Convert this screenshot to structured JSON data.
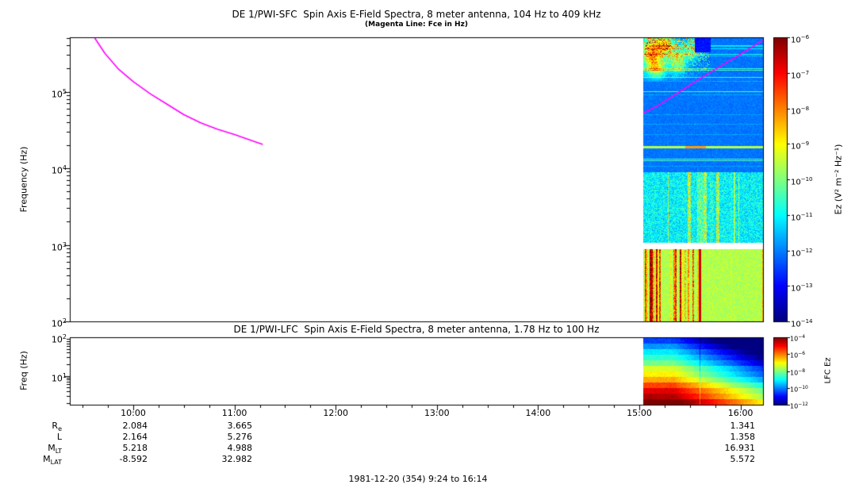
{
  "figure": {
    "footer": "1981-12-20 (354) 9:24 to 16:14",
    "background": "#ffffff"
  },
  "chart_data": [
    {
      "type": "heatmap",
      "title": "DE 1/PWI-SFC  Spin Axis E-Field Spectra, 8 meter antenna, 104 Hz to 409 kHz",
      "subtitle": "(Magenta Line: Fce in Hz)",
      "ylabel": "Frequency (Hz)",
      "y_log10_range": [
        2,
        5.71
      ],
      "ytick_exponents": [
        5,
        4,
        3,
        2
      ],
      "xtick_labels": [
        "10:00",
        "11:00",
        "12:00",
        "13:00",
        "14:00",
        "15:00",
        "16:00"
      ],
      "xtick_hours": [
        10,
        11,
        12,
        13,
        14,
        15,
        16
      ],
      "x_hours_range": [
        9.37,
        16.22
      ],
      "colorbar": {
        "label": "Ez (V² m⁻² Hz⁻¹)",
        "tick_exponents": [
          -6,
          -7,
          -8,
          -9,
          -10,
          -11,
          -12,
          -13,
          -14
        ]
      },
      "fce_line": {
        "color": "#ff00ff",
        "segments_hours_logfreq": [
          [
            [
              9.62,
              5.7
            ],
            [
              9.72,
              5.5
            ],
            [
              9.85,
              5.3
            ],
            [
              10.0,
              5.13
            ],
            [
              10.17,
              4.97
            ],
            [
              10.33,
              4.84
            ],
            [
              10.5,
              4.7
            ],
            [
              10.67,
              4.59
            ],
            [
              10.83,
              4.51
            ],
            [
              11.0,
              4.44
            ],
            [
              11.15,
              4.37
            ],
            [
              11.28,
              4.31
            ]
          ],
          [
            [
              15.04,
              4.72
            ],
            [
              15.2,
              4.83
            ],
            [
              15.4,
              5.0
            ],
            [
              15.6,
              5.17
            ],
            [
              15.8,
              5.33
            ],
            [
              16.0,
              5.49
            ],
            [
              16.22,
              5.67
            ]
          ]
        ]
      },
      "spectrogram": {
        "t_hours_range": [
          15.04,
          16.22
        ],
        "white_gap_log10": [
          2.95,
          3.03
        ],
        "bands_log10": {
          "lower_green": [
            2.0,
            2.95
          ],
          "mid_cyan": [
            3.03,
            3.95
          ],
          "upper_blue": [
            3.95,
            5.71
          ]
        }
      }
    },
    {
      "type": "heatmap",
      "title": "DE 1/PWI-LFC  Spin Axis E-Field Spectra, 8 meter antenna, 1.78 Hz to 100 Hz",
      "ylabel": "Freq (Hz)",
      "y_log10_range": [
        0.25,
        2
      ],
      "ytick_exponents": [
        2,
        1
      ],
      "colorbar": {
        "label": "LFC Ez",
        "tick_exponents": [
          -4,
          -6,
          -8,
          -10,
          -12
        ]
      },
      "spectrogram": {
        "t_hours_range": [
          15.04,
          16.22
        ]
      }
    }
  ],
  "annotations": {
    "rows": [
      {
        "label_main": "R",
        "label_sub": "e",
        "values": [
          "2.084",
          "3.665",
          "1.341"
        ]
      },
      {
        "label_main": "L",
        "label_sub": "",
        "values": [
          "2.164",
          "5.276",
          "1.358"
        ]
      },
      {
        "label_main": "M",
        "label_sub": "LT",
        "values": [
          "5.218",
          "4.988",
          "16.931"
        ]
      },
      {
        "label_main": "M",
        "label_sub": "LAT",
        "values": [
          "-8.592",
          "32.982",
          "5.572"
        ]
      }
    ]
  }
}
